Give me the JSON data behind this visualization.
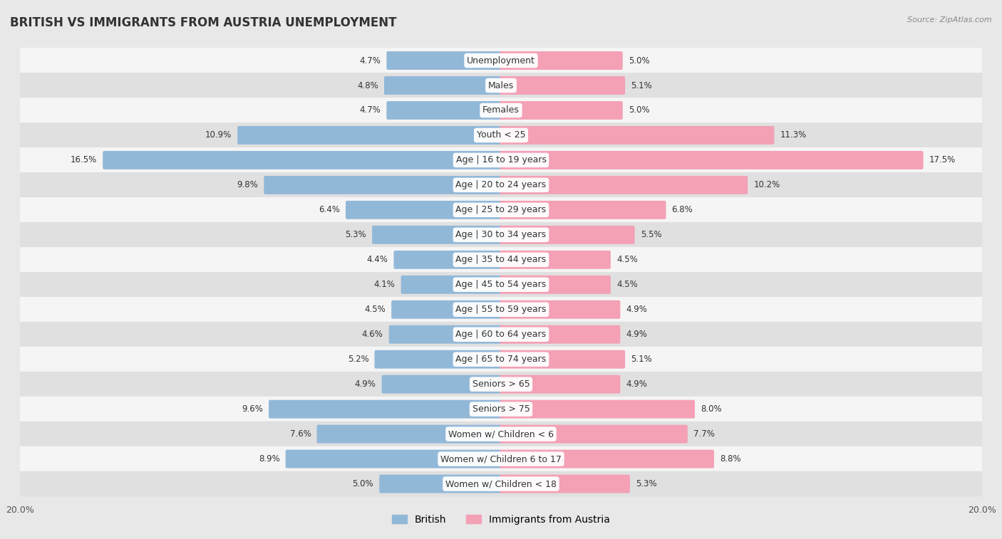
{
  "title": "BRITISH VS IMMIGRANTS FROM AUSTRIA UNEMPLOYMENT",
  "source": "Source: ZipAtlas.com",
  "categories": [
    "Unemployment",
    "Males",
    "Females",
    "Youth < 25",
    "Age | 16 to 19 years",
    "Age | 20 to 24 years",
    "Age | 25 to 29 years",
    "Age | 30 to 34 years",
    "Age | 35 to 44 years",
    "Age | 45 to 54 years",
    "Age | 55 to 59 years",
    "Age | 60 to 64 years",
    "Age | 65 to 74 years",
    "Seniors > 65",
    "Seniors > 75",
    "Women w/ Children < 6",
    "Women w/ Children 6 to 17",
    "Women w/ Children < 18"
  ],
  "british_values": [
    4.7,
    4.8,
    4.7,
    10.9,
    16.5,
    9.8,
    6.4,
    5.3,
    4.4,
    4.1,
    4.5,
    4.6,
    5.2,
    4.9,
    9.6,
    7.6,
    8.9,
    5.0
  ],
  "austria_values": [
    5.0,
    5.1,
    5.0,
    11.3,
    17.5,
    10.2,
    6.8,
    5.5,
    4.5,
    4.5,
    4.9,
    4.9,
    5.1,
    4.9,
    8.0,
    7.7,
    8.8,
    5.3
  ],
  "british_color": "#92b8d8",
  "austria_color": "#f4a0b5",
  "bg_color": "#e8e8e8",
  "row_bg_light": "#f5f5f5",
  "row_bg_dark": "#e0e0e0",
  "axis_max": 20.0,
  "label_fontsize": 9.0,
  "value_fontsize": 8.5,
  "title_fontsize": 12,
  "bar_height": 0.62
}
